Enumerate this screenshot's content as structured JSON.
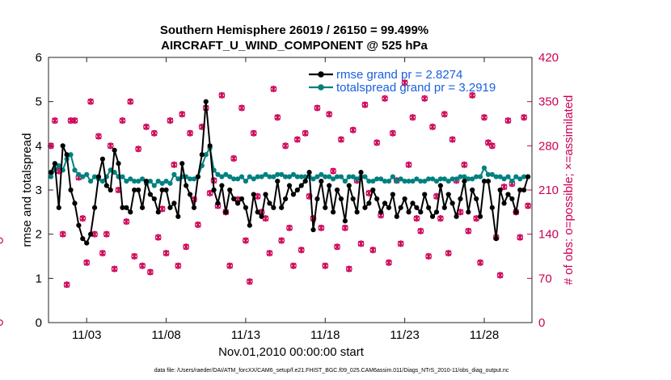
{
  "chart_data": {
    "type": "line",
    "title": "Southern Hemisphere 26019 / 26150 = 99.499%",
    "subtitle": "AIRCRAFT_U_WIND_COMPONENT @ 525 hPa",
    "xlabel": "Nov.01,2010 00:00:00 start",
    "ylabel_left": "rmse and totalspread",
    "ylabel_right": "# of obs: o=possible; ×=assimilated",
    "footnote": "data file: /Users/raeder/DAI/ATM_forcXX/CAM6_setup/f.e21.FHIST_BGC.f09_025.CAM6assim.011/Diags_NTrS_2010-11/obs_diag_output.nc",
    "xlim": [
      0.6,
      31.0
    ],
    "ylim_left": [
      0,
      6
    ],
    "ylim_right": [
      0,
      420
    ],
    "yticks_left": [
      "0",
      "1",
      "2",
      "3",
      "4",
      "5",
      "6"
    ],
    "yticks_right": [
      "0",
      "70",
      "140",
      "210",
      "280",
      "350",
      "420"
    ],
    "xticks": [
      {
        "day": 3,
        "label": "11/03"
      },
      {
        "day": 8,
        "label": "11/08"
      },
      {
        "day": 13,
        "label": "11/13"
      },
      {
        "day": 18,
        "label": "11/18"
      },
      {
        "day": 23,
        "label": "11/23"
      },
      {
        "day": 28,
        "label": "11/28"
      }
    ],
    "legend_position": "top-right",
    "x": [
      0.75,
      1.0,
      1.25,
      1.5,
      1.75,
      2.0,
      2.25,
      2.5,
      2.75,
      3.0,
      3.25,
      3.5,
      3.75,
      4.0,
      4.25,
      4.5,
      4.75,
      5.0,
      5.25,
      5.5,
      5.75,
      6.0,
      6.25,
      6.5,
      6.75,
      7.0,
      7.25,
      7.5,
      7.75,
      8.0,
      8.25,
      8.5,
      8.75,
      9.0,
      9.25,
      9.5,
      9.75,
      10.0,
      10.25,
      10.5,
      10.75,
      11.0,
      11.25,
      11.5,
      11.75,
      12.0,
      12.25,
      12.5,
      12.75,
      13.0,
      13.25,
      13.5,
      13.75,
      14.0,
      14.25,
      14.5,
      14.75,
      15.0,
      15.25,
      15.5,
      15.75,
      16.0,
      16.25,
      16.5,
      16.75,
      17.0,
      17.25,
      17.5,
      17.75,
      18.0,
      18.25,
      18.5,
      18.75,
      19.0,
      19.25,
      19.5,
      19.75,
      20.0,
      20.25,
      20.5,
      20.75,
      21.0,
      21.25,
      21.5,
      21.75,
      22.0,
      22.25,
      22.5,
      22.75,
      23.0,
      23.25,
      23.5,
      23.75,
      24.0,
      24.25,
      24.5,
      24.75,
      25.0,
      25.25,
      25.5,
      25.75,
      26.0,
      26.25,
      26.5,
      26.75,
      27.0,
      27.25,
      27.5,
      27.75,
      28.0,
      28.25,
      28.5,
      28.75,
      29.0,
      29.25,
      29.5,
      29.75,
      30.0,
      30.25,
      30.5,
      30.75
    ],
    "series": [
      {
        "name": "rmse grand pr = 2.8274",
        "color": "#000000",
        "values": [
          3.4,
          3.6,
          2.6,
          4.0,
          3.8,
          3.0,
          2.7,
          2.2,
          1.9,
          1.8,
          2.0,
          2.6,
          3.3,
          3.7,
          3.1,
          3.0,
          3.9,
          3.6,
          2.6,
          2.6,
          2.5,
          3.0,
          3.0,
          2.6,
          3.2,
          2.9,
          2.8,
          2.5,
          3.0,
          3.0,
          2.6,
          2.7,
          2.4,
          3.6,
          3.1,
          2.9,
          2.6,
          3.3,
          3.8,
          5.0,
          4.0,
          3.0,
          2.7,
          3.1,
          2.5,
          3.0,
          2.8,
          2.7,
          2.8,
          2.6,
          2.2,
          2.9,
          2.5,
          2.4,
          2.9,
          2.7,
          2.6,
          3.2,
          2.6,
          2.8,
          3.1,
          2.9,
          3.0,
          3.1,
          3.2,
          3.4,
          2.1,
          2.8,
          3.2,
          2.6,
          3.1,
          2.5,
          3.0,
          2.8,
          2.3,
          3.1,
          2.8,
          2.5,
          3.4,
          2.6,
          2.7,
          3.0,
          2.8,
          2.5,
          2.7,
          2.6,
          2.9,
          2.4,
          2.6,
          2.8,
          2.5,
          2.7,
          2.6,
          2.5,
          2.9,
          2.6,
          2.4,
          2.5,
          3.1,
          2.6,
          2.9,
          2.7,
          2.4,
          2.8,
          3.2,
          2.5,
          3.0,
          2.8,
          2.4,
          3.2,
          3.2,
          2.6,
          1.9,
          3.0,
          2.7,
          2.9,
          2.8,
          2.5,
          3.0,
          3.0,
          3.3
        ]
      },
      {
        "name": "totalspread grand pr = 3.2919",
        "color": "#008080",
        "values": [
          3.3,
          3.45,
          3.55,
          3.45,
          3.7,
          3.8,
          3.45,
          3.35,
          3.3,
          3.35,
          3.2,
          3.3,
          3.25,
          3.2,
          3.3,
          3.45,
          3.4,
          3.3,
          3.3,
          3.2,
          3.25,
          3.2,
          3.2,
          3.25,
          3.15,
          3.2,
          3.1,
          3.2,
          3.15,
          3.2,
          3.15,
          3.35,
          3.25,
          3.3,
          3.3,
          3.25,
          3.25,
          3.3,
          3.55,
          3.8,
          3.95,
          3.45,
          3.35,
          3.3,
          3.35,
          3.3,
          3.25,
          3.25,
          3.3,
          3.2,
          3.3,
          3.25,
          3.3,
          3.3,
          3.35,
          3.3,
          3.3,
          3.35,
          3.35,
          3.3,
          3.3,
          3.35,
          3.3,
          3.3,
          3.3,
          3.3,
          3.25,
          3.3,
          3.35,
          3.3,
          3.3,
          3.25,
          3.3,
          3.3,
          3.2,
          3.3,
          3.3,
          3.25,
          3.3,
          3.3,
          3.2,
          3.2,
          3.25,
          3.25,
          3.2,
          3.2,
          3.3,
          3.2,
          3.25,
          3.2,
          3.2,
          3.2,
          3.25,
          3.2,
          3.2,
          3.25,
          3.25,
          3.2,
          3.25,
          3.25,
          3.2,
          3.25,
          3.25,
          3.3,
          3.3,
          3.25,
          3.25,
          3.3,
          3.3,
          3.5,
          3.35,
          3.35,
          3.3,
          3.3,
          3.25,
          3.3,
          3.2,
          3.3,
          3.25,
          3.3,
          3.3
        ]
      }
    ],
    "obs_counts": {
      "color": "#CC0055",
      "values": [
        280,
        320,
        240,
        140,
        60,
        320,
        320,
        230,
        165,
        95,
        350,
        140,
        295,
        110,
        140,
        280,
        85,
        210,
        320,
        160,
        350,
        105,
        275,
        90,
        310,
        80,
        300,
        135,
        180,
        110,
        320,
        250,
        90,
        330,
        120,
        300,
        195,
        155,
        310,
        340,
        205,
        225,
        185,
        360,
        175,
        90,
        260,
        195,
        340,
        130,
        65,
        300,
        200,
        175,
        165,
        110,
        370,
        325,
        130,
        280,
        150,
        90,
        290,
        115,
        300,
        200,
        165,
        340,
        150,
        90,
        330,
        240,
        120,
        290,
        150,
        85,
        305,
        225,
        125,
        345,
        205,
        115,
        285,
        170,
        355,
        95,
        300,
        225,
        125,
        380,
        250,
        325,
        165,
        145,
        355,
        105,
        310,
        200,
        165,
        330,
        110,
        290,
        225,
        175,
        250,
        145,
        360,
        165,
        95,
        325,
        285,
        280,
        135,
        75,
        215,
        320,
        220,
        175,
        135,
        325,
        185,
        130,
        0
      ]
    }
  }
}
